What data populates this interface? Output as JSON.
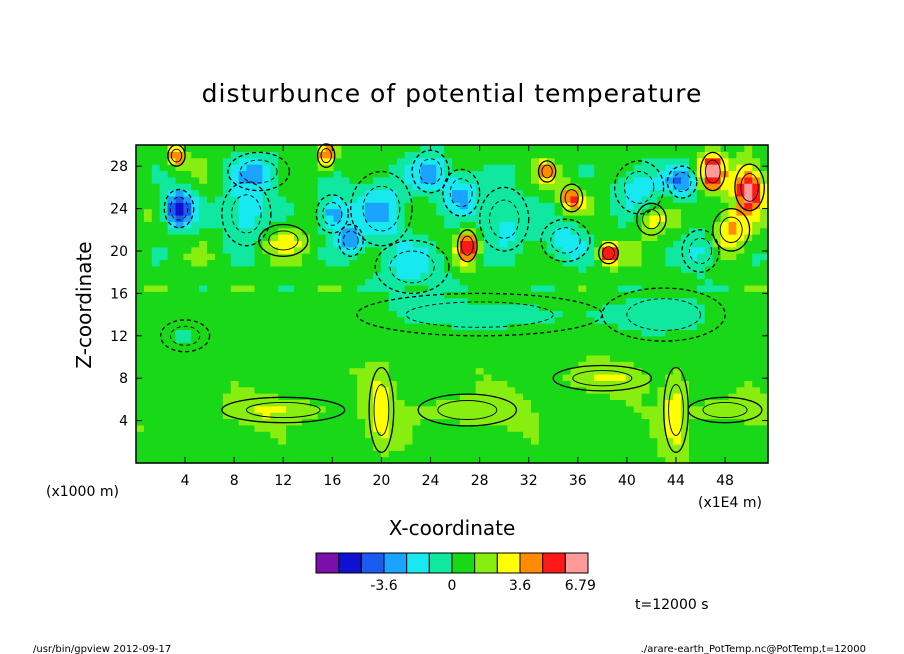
{
  "chart_data": {
    "type": "heatmap",
    "title": "disturbunce of potential temperature",
    "xlabel": "X-coordinate",
    "ylabel": "Z-coordinate",
    "x_unit": "(x1E4 m)",
    "y_unit": "(x1000 m)",
    "xlim": [
      0,
      51.5
    ],
    "ylim": [
      0,
      30
    ],
    "x_ticks": [
      "4",
      "8",
      "12",
      "16",
      "20",
      "24",
      "28",
      "32",
      "36",
      "40",
      "44",
      "48"
    ],
    "y_ticks": [
      "4",
      "8",
      "12",
      "16",
      "20",
      "24",
      "28"
    ],
    "colorbar": {
      "colors": [
        "#7b0fa8",
        "#1010d0",
        "#1a5cf0",
        "#1aa4ff",
        "#18e8f0",
        "#10e8a0",
        "#18d818",
        "#88ee10",
        "#ffff00",
        "#ff8c00",
        "#ff1818",
        "#ff9a9a"
      ],
      "labels": [
        "-3.6",
        "0",
        "3.6",
        "6.79"
      ],
      "label_values": [
        -3.6,
        0,
        3.6,
        6.79
      ],
      "range": [
        -7.2,
        7.2
      ]
    },
    "background_value": 0.7,
    "features": [
      {
        "x": 3.5,
        "z": 24.0,
        "value": -6.5,
        "rx": 1.2,
        "rz": 1.8
      },
      {
        "x": 3.3,
        "z": 29.0,
        "value": 4.5,
        "rx": 0.7,
        "rz": 1.0
      },
      {
        "x": 9.0,
        "z": 23.5,
        "value": -3.0,
        "rx": 2.0,
        "rz": 3.0
      },
      {
        "x": 10.0,
        "z": 27.5,
        "value": -2.6,
        "rx": 2.5,
        "rz": 1.8
      },
      {
        "x": 15.5,
        "z": 29.0,
        "value": 4.8,
        "rx": 0.7,
        "rz": 1.1
      },
      {
        "x": 16.0,
        "z": 23.5,
        "value": -4.0,
        "rx": 1.3,
        "rz": 1.8
      },
      {
        "x": 17.5,
        "z": 21.0,
        "value": -3.4,
        "rx": 1.0,
        "rz": 1.5
      },
      {
        "x": 20.0,
        "z": 24.0,
        "value": -2.8,
        "rx": 2.5,
        "rz": 3.5
      },
      {
        "x": 24.0,
        "z": 27.5,
        "value": -3.3,
        "rx": 1.5,
        "rz": 2.0
      },
      {
        "x": 27.0,
        "z": 20.5,
        "value": 5.5,
        "rx": 0.8,
        "rz": 1.5
      },
      {
        "x": 26.5,
        "z": 25.5,
        "value": -3.2,
        "rx": 1.5,
        "rz": 2.2
      },
      {
        "x": 30.0,
        "z": 23.0,
        "value": -2.6,
        "rx": 2.0,
        "rz": 3.0
      },
      {
        "x": 33.5,
        "z": 27.5,
        "value": 3.8,
        "rx": 0.7,
        "rz": 1.0
      },
      {
        "x": 35.5,
        "z": 25.0,
        "value": 4.2,
        "rx": 0.9,
        "rz": 1.3
      },
      {
        "x": 35.0,
        "z": 21.0,
        "value": -2.7,
        "rx": 2.0,
        "rz": 2.0
      },
      {
        "x": 38.5,
        "z": 19.8,
        "value": 5.8,
        "rx": 0.8,
        "rz": 1.0
      },
      {
        "x": 41.0,
        "z": 26.0,
        "value": -2.8,
        "rx": 2.0,
        "rz": 2.5
      },
      {
        "x": 42.0,
        "z": 23.0,
        "value": 2.5,
        "rx": 1.2,
        "rz": 1.5
      },
      {
        "x": 44.5,
        "z": 26.5,
        "value": -4.0,
        "rx": 1.2,
        "rz": 1.5
      },
      {
        "x": 47.0,
        "z": 27.5,
        "value": 5.5,
        "rx": 1.0,
        "rz": 1.8
      },
      {
        "x": 50.0,
        "z": 26.0,
        "value": 6.3,
        "rx": 1.2,
        "rz": 2.2
      },
      {
        "x": 48.5,
        "z": 22.0,
        "value": 3.2,
        "rx": 1.5,
        "rz": 2.0
      },
      {
        "x": 46.0,
        "z": 20.0,
        "value": -2.5,
        "rx": 1.5,
        "rz": 2.0
      },
      {
        "x": 22.5,
        "z": 18.5,
        "value": -2.2,
        "rx": 3.0,
        "rz": 2.5
      },
      {
        "x": 12.0,
        "z": 21.0,
        "value": 2.0,
        "rx": 2.0,
        "rz": 1.5
      },
      {
        "x": 28.0,
        "z": 14.0,
        "value": -1.0,
        "rx": 10.0,
        "rz": 2.0
      },
      {
        "x": 43.0,
        "z": 14.0,
        "value": -1.1,
        "rx": 5.0,
        "rz": 2.5
      },
      {
        "x": 4.0,
        "z": 12.0,
        "value": -0.8,
        "rx": 2.0,
        "rz": 1.5
      },
      {
        "x": 12.0,
        "z": 5.0,
        "value": 1.6,
        "rx": 5.0,
        "rz": 1.2
      },
      {
        "x": 27.0,
        "z": 5.0,
        "value": 1.7,
        "rx": 4.0,
        "rz": 1.5
      },
      {
        "x": 38.0,
        "z": 8.0,
        "value": 1.5,
        "rx": 4.0,
        "rz": 1.2
      },
      {
        "x": 48.0,
        "z": 5.0,
        "value": 1.7,
        "rx": 3.0,
        "rz": 1.2
      },
      {
        "x": 20.0,
        "z": 5.0,
        "value": 2.2,
        "rx": 1.0,
        "rz": 4.0
      },
      {
        "x": 44.0,
        "z": 5.0,
        "value": 2.4,
        "rx": 1.0,
        "rz": 4.0
      }
    ],
    "annotation": "t=12000 s"
  },
  "footer": {
    "left": "/usr/bin/gpview  2012-09-17",
    "right": "./arare-earth_PotTemp.nc@PotTemp,t=12000"
  }
}
